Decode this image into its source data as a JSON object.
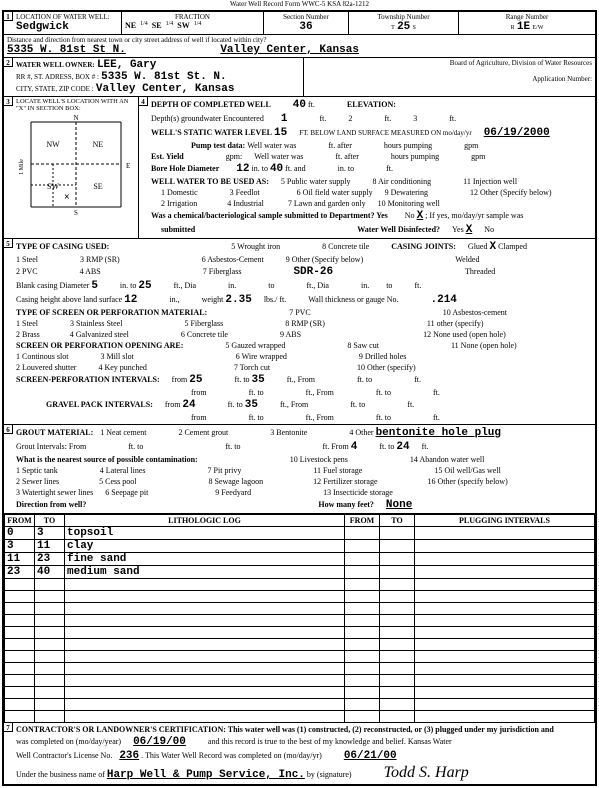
{
  "form_header": "Water Well Record   Form WWC-5   KSA 82a-1212",
  "sec1": {
    "location_label": "LOCATION OF WATER WELL:",
    "county": "Sedgwick",
    "fraction_label": "FRACTION",
    "ne": "NE",
    "se": "SE",
    "sw": "SW",
    "q": "1/4",
    "section_label": "Section Number",
    "section": "36",
    "township_label": "Township Number",
    "township": "25",
    "township_s": "S",
    "range_label": "Range Number",
    "range": "1E",
    "range_ew": "E/W",
    "distance_label": "Distance and direction from nearest town or city  street address of well if located within city?",
    "address": "5335 W. 81st St N.",
    "city_state": "Valley Center, Kansas"
  },
  "sec2": {
    "owner_label": "WATER WELL OWNER:",
    "owner": "LEE, Gary",
    "rr_label": "RR #, ST. ADRESS, BOX # :",
    "rr": "5335 W. 81st St. N.",
    "city_label": "CITY, STATE, ZIP CODE :",
    "city": "Valley Center, Kansas",
    "board": "Board of Agriculture, Division of Water Resources",
    "app_label": "Application Number:"
  },
  "sec3": {
    "locate_label": "LOCATE WELL'S LOCATION WITH AN \"X\" IN SECTION BOX:"
  },
  "sec4": {
    "depth_label": "DEPTH OF COMPLETED WELL",
    "depth": "40",
    "depth_ft": "ft.",
    "elev_label": "ELEVATION:",
    "gw_label": "Depth(s) groundwater Encountered",
    "gw1": "1",
    "ft": "ft.",
    "static_label": "WELL'S STATIC WATER LEVEL",
    "static": "15",
    "below": "FT. BELOW LAND SURFACE MEASURED ON mo/day/yr",
    "date": "06/19/2000",
    "pump_label": "Pump test data:",
    "well_water_was": "Well water was",
    "after": "after",
    "hours_pumping": "hours pumping",
    "gpm": "gpm",
    "est_yield": "Est. Yield",
    "gpm2": "gpm:",
    "bore_label": "Bore Hole Diameter",
    "bore": "12",
    "in": "in.",
    "to": "to",
    "bore_to": "40",
    "and": "and",
    "use_label": "WELL WATER TO BE USED AS:",
    "use1": "1 Domestic",
    "use2": "2 Irrigation",
    "use3": "3 Feedlot",
    "use4": "4 Industrial",
    "use5": "5 Public water supply",
    "use6": "6 Oil field water supply",
    "use7": "7 Lawn and garden only",
    "use8": "8 Air conditioning",
    "use9": "9 Dewatering",
    "use10": "10 Monitoring well",
    "use11": "11 Injection well",
    "use12": "12 Other (Specify below)",
    "chem_label": "Was a chemical/bacteriological sample submitted to Department? Yes",
    "no": "No",
    "x": "X",
    "ifyes": "; If yes, mo/day/yr sample was",
    "submitted": "submitted",
    "disinfect": "Water Well Disinfected?",
    "yes": "Yes",
    "dx": "X"
  },
  "sec5": {
    "title": "TYPE OF CASING USED:",
    "c1": "1 Steel",
    "c2": "2 PVC",
    "c3": "3 RMP (SR)",
    "c4": "4 ABS",
    "c5": "5 Wrought iron",
    "c6": "6 Asbestos-Cement",
    "c7": "7 Fiberglass",
    "c8": "8 Concrete tile",
    "c9": "9 Other (Specify below)",
    "sdr": "SDR-26",
    "joints_label": "CASING JOINTS:",
    "glued": "Glued",
    "x": "X",
    "clamped": "Clamped",
    "welded": "Welded",
    "threaded": "Threaded",
    "blank_label": "Blank casing Diameter",
    "blank": "5",
    "in": "in.",
    "to": "to",
    "blank_to": "25",
    "ft": "ft.,",
    "dia": "Dia",
    "height_label": "Casing height above land surface",
    "height": "12",
    "in2": "in.,",
    "weight": "weight",
    "weight_v": "2.35",
    "lbs": "lbs./ ft.",
    "thick_label": "Wall thickness or gauge No.",
    "thick": ".214",
    "screen_label": "TYPE OF SCREEN OR PERFORATION MATERIAL:",
    "s1": "1 Steel",
    "s2": "2 Brass",
    "s3": "3 Stainless Steel",
    "s4": "4 Galvanized steel",
    "s5": "5 Fiberglass",
    "s6": "6 Concrete tile",
    "s7": "7 PVC",
    "s8": "8 RMP (SR)",
    "s9": "9 ABS",
    "s10": "10 Asbestos-cement",
    "s11": "11 other (specify)",
    "s12": "12 None used (open hole)",
    "open_label": "SCREEN OR PERFORATION OPENING ARE:",
    "o1": "1 Continous slot",
    "o2": "2 Louvered shutter",
    "o3": "3 Mill slot",
    "o4": "4 Key punched",
    "o5": "5 Gauzed wrapped",
    "o6": "6 Wire wrapped",
    "o7": "7 Torch cut",
    "o8": "8 Saw cut",
    "o9": "9 Drilled holes",
    "o10": "10 Other (specify)",
    "o11": "11 None (open hole)",
    "sp_label": "SCREEN-PERFORATION INTERVALS:",
    "from": "from",
    "sp_from1": "25",
    "fto": "ft. to",
    "sp_to1": "35",
    "ftFrom": "ft., From",
    "ftto": "ft. to",
    "gp_label": "GRAVEL PACK INTERVALS:",
    "gp_from": "24",
    "gp_to": "35"
  },
  "sec6": {
    "title": "GROUT MATERIAL:",
    "g1": "1 Neat cement",
    "g2": "2 Cement grout",
    "g3": "3 Bentonite",
    "g4": "4 Other",
    "other": "bentonite hole plug",
    "gi_label": "Grout Intervals:   From",
    "ft": "ft.",
    "to": "to",
    "ftto": "ft.  to",
    "ftFrom": "ft.  From",
    "gi_from2": "4",
    "gi_to2": "24",
    "contam_label": "What is the nearest source of possible contamination:",
    "p1": "1 Septic tank",
    "p2": "2 Sewer lines",
    "p3": "3 Watertight sewer lines",
    "p4": "4 Lateral lines",
    "p5": "5 Cess pool",
    "p6": "6 Seepage pit",
    "p7": "7 Pit privy",
    "p8": "8 Sewage lagoon",
    "p9": "9 Feedyard",
    "p10": "10 Livestock pens",
    "p11": "11 Fuel storage",
    "p12": "12 Fertilizer storage",
    "p13": "13 Insecticide storage",
    "p14": "14 Abandon water well",
    "p15": "15 Oil well/Gas well",
    "p16": "16 Other (specify below)",
    "dir_label": "Direction from well?",
    "feet_label": "How many feet?",
    "feet": "None"
  },
  "log": {
    "from_h": "FROM",
    "to_h": "TO",
    "lith_h": "LITHOLOGIC LOG",
    "pfrom_h": "FROM",
    "pto_h": "TO",
    "plug_h": "PLUGGING INTERVALS",
    "rows": [
      {
        "f": "0",
        "t": "3",
        "d": "topsoil"
      },
      {
        "f": "3",
        "t": "11",
        "d": "clay"
      },
      {
        "f": "11",
        "t": "23",
        "d": "fine sand"
      },
      {
        "f": "23",
        "t": "40",
        "d": "medium  sand"
      }
    ]
  },
  "sec7": {
    "cert1": "CONTRACTOR'S OR LANDOWNER'S CERTIFICATION:  This water well was (1) constructed, (2) reconstructed, or (3) plugged under my jurisdiction and",
    "cert2": "was completed on (mo/day/year)",
    "date1": "06/19/00",
    "cert3": "and this record is true to the best of my knowledge and belief. Kansas Water",
    "cert4": "Well Contractor's License No.",
    "lic": "236",
    "cert5": ". This Water Well Record was completed on (mo/day/yr)",
    "date2": "06/21/00",
    "cert6": "Under the business name of",
    "biz": "Harp Well & Pump Service, Inc.",
    "cert7": "by (signature)",
    "sig": "Todd S. Harp"
  }
}
